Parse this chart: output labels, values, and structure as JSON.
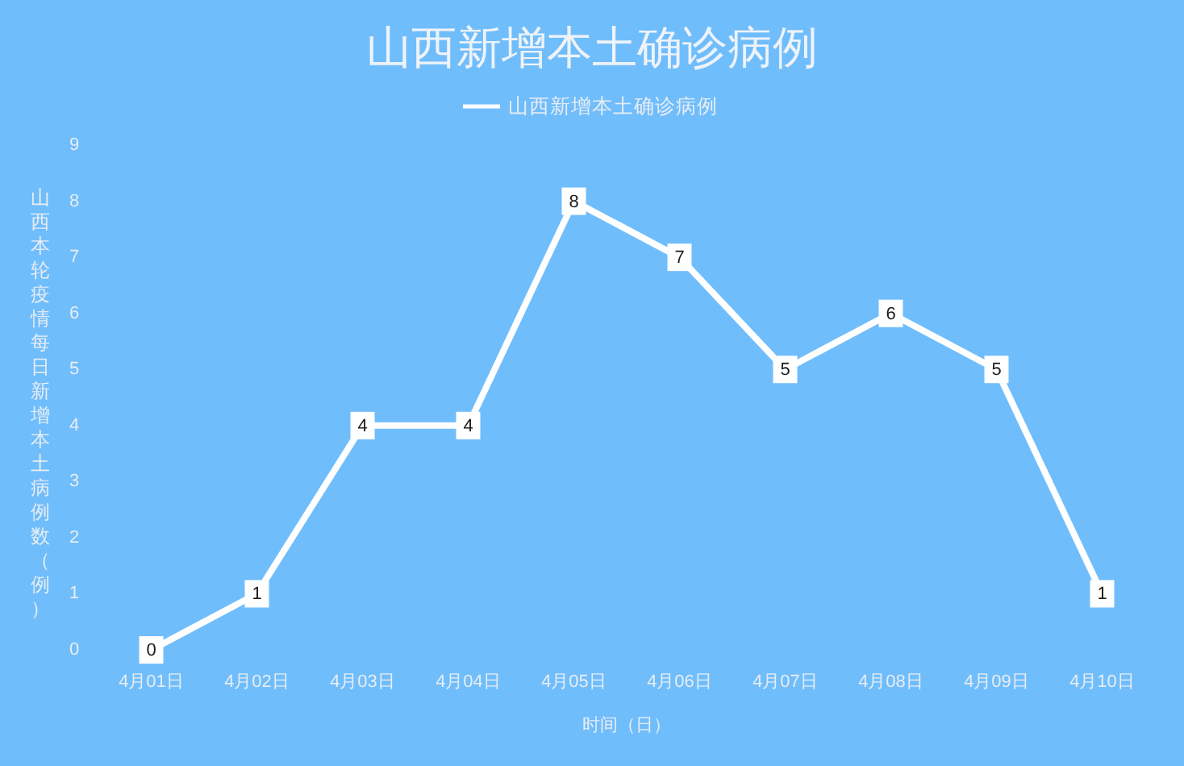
{
  "chart_data": {
    "type": "line",
    "title": "山西新增本土确诊病例",
    "xlabel": "时间（日）",
    "ylabel": "山西本轮疫情每日新增本土病例数（例）",
    "categories": [
      "4月01日",
      "4月02日",
      "4月03日",
      "4月04日",
      "4月05日",
      "4月06日",
      "4月07日",
      "4月08日",
      "4月09日",
      "4月10日"
    ],
    "series": [
      {
        "name": "山西新增本土确诊病例",
        "color": "#ffffff",
        "values": [
          0,
          1,
          4,
          4,
          8,
          7,
          5,
          6,
          5,
          1
        ]
      }
    ],
    "ylim": [
      0,
      9
    ],
    "yticks": [
      0,
      1,
      2,
      3,
      4,
      5,
      6,
      7,
      8,
      9
    ],
    "data_labels": true,
    "legend": "top",
    "marker": "square",
    "line_style": "solid"
  }
}
